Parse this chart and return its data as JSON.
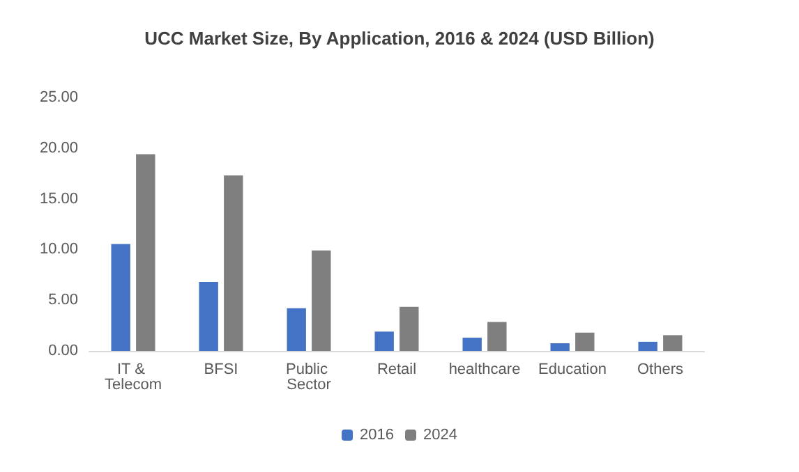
{
  "chart_data": {
    "type": "bar",
    "title": "UCC Market Size, By Application, 2016 & 2024 (USD Billion)",
    "categories": [
      "IT & Telecom",
      "BFSI",
      "Public Sector",
      "Retail",
      "healthcare",
      "Education",
      "Others"
    ],
    "series": [
      {
        "name": "2016",
        "color": "#4472c4",
        "values": [
          10.55,
          6.8,
          4.2,
          1.9,
          1.3,
          0.75,
          0.9
        ]
      },
      {
        "name": "2024",
        "color": "#7f7f7f",
        "values": [
          19.4,
          17.3,
          9.9,
          4.35,
          2.85,
          1.8,
          1.55
        ]
      }
    ],
    "ylim": [
      0,
      25
    ],
    "yticks": [
      {
        "value": 0,
        "label": "0.00"
      },
      {
        "value": 5,
        "label": "5.00"
      },
      {
        "value": 10,
        "label": "10.00"
      },
      {
        "value": 15,
        "label": "15.00"
      },
      {
        "value": 20,
        "label": "20.00"
      },
      {
        "value": 25,
        "label": "25.00"
      }
    ],
    "grid": false,
    "legend": "bottom"
  }
}
